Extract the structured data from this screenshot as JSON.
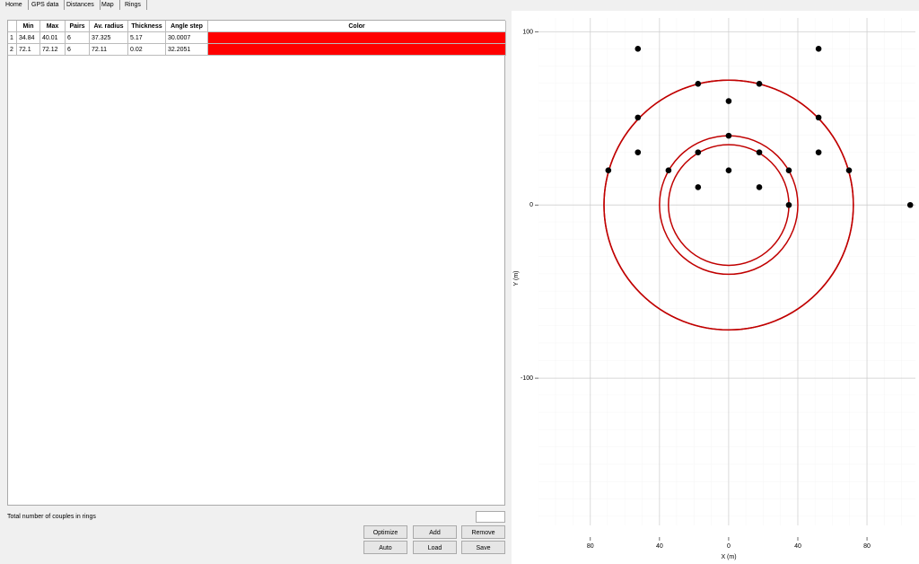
{
  "tabs": [
    "Home",
    "GPS data",
    "Distances",
    "Map",
    "Rings"
  ],
  "table": {
    "columns": [
      "Min",
      "Max",
      "Pairs",
      "Av. radius",
      "Thickness",
      "Angle step",
      "Color"
    ],
    "rows": [
      {
        "label": "1",
        "cells": [
          34.84,
          40.01,
          6,
          37.325,
          5.17,
          30.0007
        ],
        "color": "#ff0000"
      },
      {
        "label": "2",
        "cells": [
          72.1,
          72.12,
          6,
          72.11,
          0.02,
          32.2051
        ],
        "color": "#ff0000"
      }
    ]
  },
  "footer_label": "Total number of couples in rings",
  "buttons": [
    "Optimize",
    "Add",
    "Remove",
    "Auto",
    "Load",
    "Save"
  ],
  "chart_data": {
    "type": "scatter",
    "x_label": "X (m)",
    "y_label": "Y (m)",
    "x": [
      -52.5,
      52,
      -17.7,
      17.7,
      0,
      -52.5,
      52,
      0,
      -52.5,
      -17.7,
      17.7,
      52,
      -69.6,
      -34.8,
      0,
      34.8,
      69.6,
      -17.7,
      17.7,
      34.8,
      105
    ],
    "values": [
      90.2,
      90.2,
      70,
      70,
      60,
      50.5,
      50.5,
      40,
      30.4,
      30.4,
      30.4,
      30.4,
      20,
      20,
      20,
      20,
      20,
      10.3,
      10.3,
      0,
      0
    ],
    "color": "#000000",
    "ring_color": "#c00000",
    "xlim": [
      -110,
      108
    ],
    "ylim": [
      -185,
      108
    ],
    "xticks": [
      {
        "value": -80,
        "label": "80"
      },
      {
        "value": -40,
        "label": "40"
      },
      0,
      40,
      80
    ],
    "yticks": [
      100,
      0,
      -100
    ],
    "grid": true
  }
}
